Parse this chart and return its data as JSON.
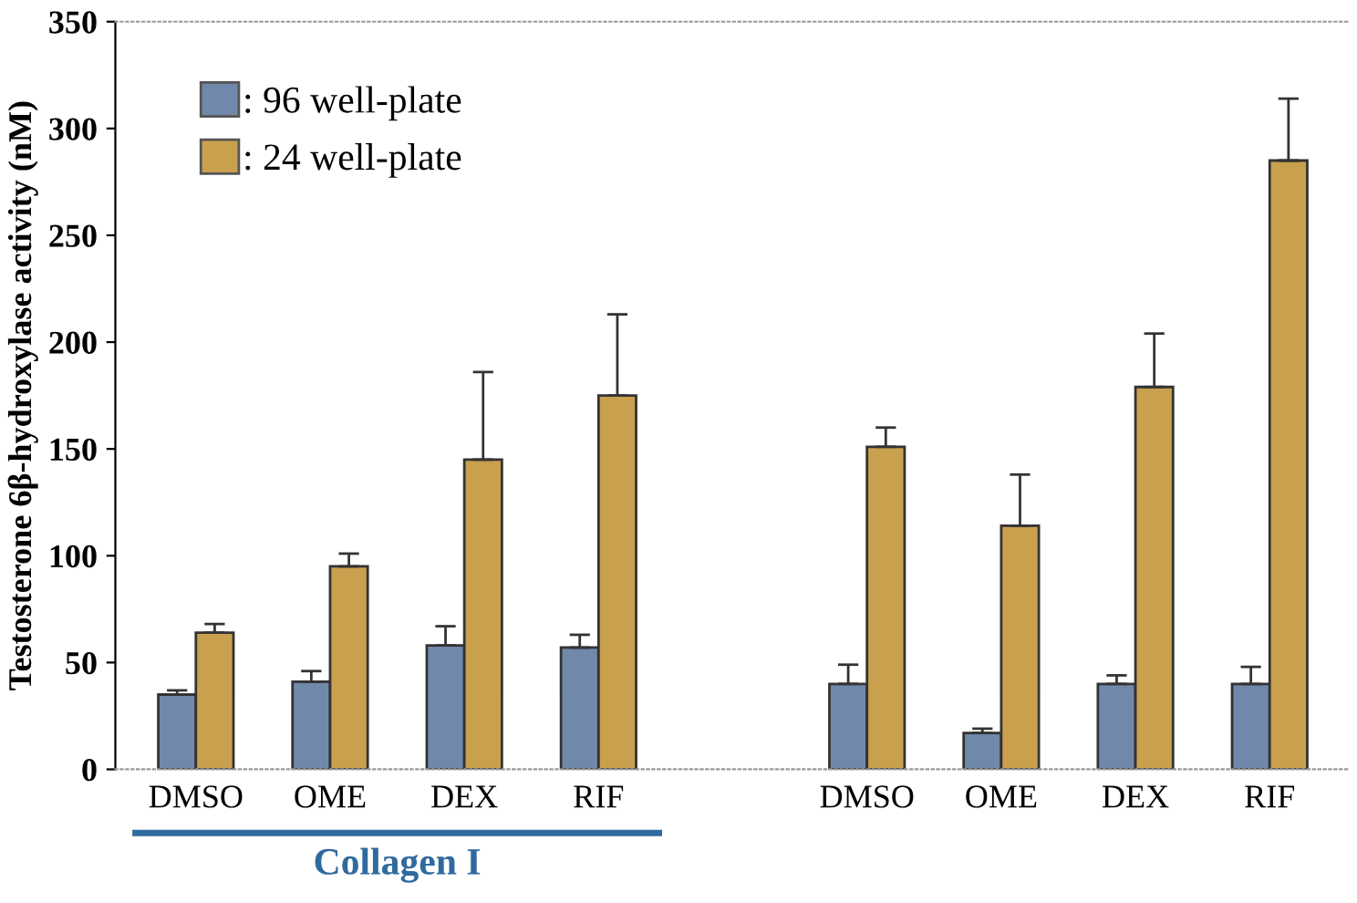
{
  "chart_data": {
    "type": "bar",
    "ylabel": "Testosterone 6β-hydroxylase activity (nM)",
    "categories": [
      "DMSO",
      "OME",
      "DEX",
      "RIF",
      null,
      "DMSO",
      "OME",
      "DEX",
      "RIF"
    ],
    "series": [
      {
        "name": ": 96 well-plate",
        "color": "#7088aa",
        "values": [
          35,
          41,
          58,
          57,
          null,
          40,
          17,
          40,
          40
        ],
        "errors": [
          [
            35,
            37
          ],
          [
            41,
            46
          ],
          [
            58,
            67
          ],
          [
            57,
            63
          ],
          null,
          [
            40,
            49
          ],
          [
            17,
            19
          ],
          [
            40,
            44
          ],
          [
            40,
            48
          ]
        ]
      },
      {
        "name": ": 24 well-plate",
        "color": "#c9a04e",
        "values": [
          64,
          95,
          145,
          175,
          null,
          151,
          114,
          179,
          285
        ],
        "errors": [
          [
            64,
            68
          ],
          [
            95,
            101
          ],
          [
            145,
            186
          ],
          [
            175,
            213
          ],
          null,
          [
            151,
            160
          ],
          [
            114,
            138
          ],
          [
            179,
            204
          ],
          [
            285,
            314
          ]
        ]
      }
    ],
    "ylim": [
      0,
      350
    ],
    "yticks": [
      0,
      50,
      100,
      150,
      200,
      250,
      300,
      350
    ],
    "legend": "top left",
    "grid": false,
    "annotations": [
      "Collagen I"
    ]
  }
}
